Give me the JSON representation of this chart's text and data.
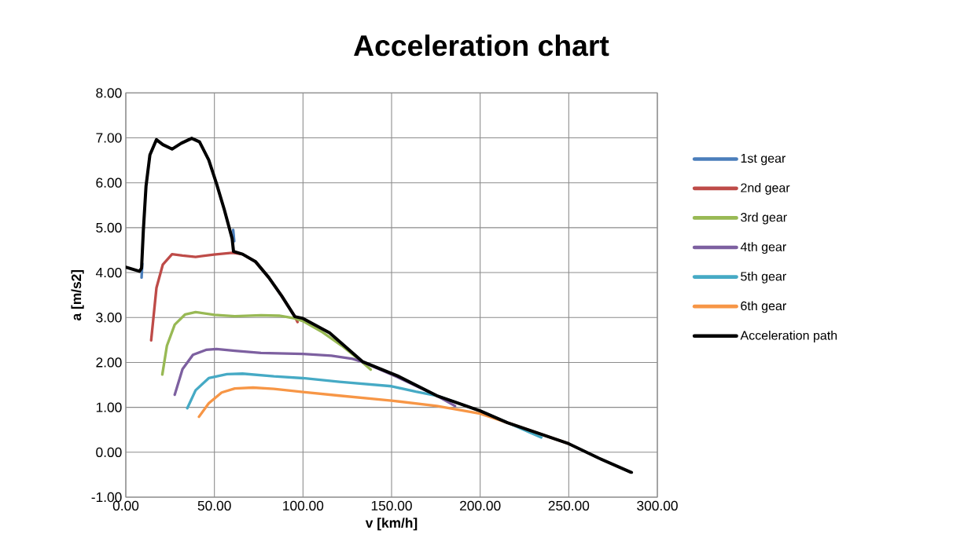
{
  "chart_data": {
    "type": "line",
    "title": "Acceleration chart",
    "xlabel": "v [km/h]",
    "ylabel": "a [m/s2]",
    "xlim": [
      0,
      300
    ],
    "ylim": [
      -1,
      8
    ],
    "xticks": [
      {
        "value": 0,
        "label": "0.00"
      },
      {
        "value": 50,
        "label": "50.00"
      },
      {
        "value": 100,
        "label": "100.00"
      },
      {
        "value": 150,
        "label": "150.00"
      },
      {
        "value": 200,
        "label": "200.00"
      },
      {
        "value": 250,
        "label": "250.00"
      },
      {
        "value": 300,
        "label": "300.00"
      }
    ],
    "yticks": [
      {
        "value": -1,
        "label": "-1.00"
      },
      {
        "value": 0,
        "label": "0.00"
      },
      {
        "value": 1,
        "label": "1.00"
      },
      {
        "value": 2,
        "label": "2.00"
      },
      {
        "value": 3,
        "label": "3.00"
      },
      {
        "value": 4,
        "label": "4.00"
      },
      {
        "value": 5,
        "label": "5.00"
      },
      {
        "value": 6,
        "label": "6.00"
      },
      {
        "value": 7,
        "label": "7.00"
      },
      {
        "value": 8,
        "label": "8.00"
      }
    ],
    "grid": true,
    "legend": "right",
    "marker": "none",
    "line_style": "solid",
    "series": [
      {
        "name": "1st gear",
        "color": "#4a7ebb",
        "x": [
          8.9,
          9.3,
          9.9,
          11.4,
          13.6,
          17.3,
          20.9,
          26.1,
          31.3,
          37.2,
          41.6,
          46.8,
          51.2,
          55.6,
          60.0,
          60.6,
          61.2
        ],
        "values": [
          3.89,
          4.2,
          null,
          null,
          null,
          null,
          null,
          null,
          null,
          null,
          null,
          null,
          null,
          null,
          null,
          4.95,
          4.7
        ]
      },
      {
        "name": "2nd gear",
        "color": "#be4b48",
        "x": [
          14.3,
          17.3,
          20.9,
          26.1,
          32.0,
          39.4,
          49.7,
          60.0,
          65.9,
          73.3,
          80.7,
          88.0,
          95.4,
          96.9
        ],
        "values": [
          2.49,
          3.66,
          4.18,
          4.41,
          4.38,
          4.35,
          4.4,
          4.44,
          4.41,
          4.24,
          3.89,
          3.48,
          3.02,
          2.9
        ]
      },
      {
        "name": "3rd gear",
        "color": "#98b954",
        "x": [
          20.6,
          23.2,
          27.6,
          33.5,
          39.4,
          50.0,
          61.5,
          76.3,
          86.6,
          95.4,
          100.0,
          110.3,
          122.0,
          133.0,
          138.2
        ],
        "values": [
          1.73,
          2.37,
          2.84,
          3.07,
          3.12,
          3.06,
          3.03,
          3.05,
          3.04,
          2.98,
          2.92,
          2.69,
          2.37,
          2.02,
          1.84
        ]
      },
      {
        "name": "4th gear",
        "color": "#7d60a0",
        "x": [
          27.6,
          32.0,
          37.9,
          45.3,
          51.2,
          61.5,
          76.3,
          100.0,
          116.0,
          128.0,
          133.0,
          153.4,
          175.5,
          185.8
        ],
        "values": [
          1.28,
          1.85,
          2.17,
          2.28,
          2.3,
          2.26,
          2.21,
          2.19,
          2.15,
          2.08,
          2.02,
          1.67,
          1.26,
          1.03
        ]
      },
      {
        "name": "5th gear",
        "color": "#46aac5",
        "x": [
          34.7,
          39.4,
          46.8,
          57.1,
          65.9,
          83.6,
          100.0,
          120.5,
          150.0,
          163.7,
          175.5,
          200.0,
          215.3,
          234.5
        ],
        "values": [
          0.98,
          1.38,
          1.65,
          1.74,
          1.75,
          1.69,
          1.65,
          1.57,
          1.47,
          1.35,
          1.26,
          0.92,
          0.66,
          0.33
        ]
      },
      {
        "name": "6th gear",
        "color": "#f79646",
        "x": [
          41.3,
          46.8,
          54.1,
          61.5,
          71.8,
          83.6,
          100.0,
          120.5,
          150.0,
          175.5,
          200.0,
          215.3,
          250.0
        ],
        "values": [
          0.79,
          1.09,
          1.33,
          1.42,
          1.44,
          1.41,
          1.34,
          1.26,
          1.15,
          1.03,
          0.86,
          0.66,
          0.19
        ]
      },
      {
        "name": "Acceleration path",
        "color": "#000000",
        "x": [
          0,
          7.7,
          8.9,
          9.9,
          11.4,
          13.6,
          17.3,
          20.9,
          26.1,
          31.3,
          37.2,
          41.6,
          46.8,
          51.2,
          55.6,
          60.0,
          60.8,
          65.9,
          73.3,
          80.7,
          88.0,
          95.4,
          100.0,
          115.0,
          133.5,
          153.4,
          175.5,
          200.0,
          215.3,
          250.0,
          266.9,
          285.4
        ],
        "values": [
          4.12,
          4.03,
          4.1,
          4.94,
          5.92,
          6.62,
          6.96,
          6.85,
          6.75,
          6.88,
          6.99,
          6.91,
          6.51,
          5.98,
          5.4,
          4.76,
          4.47,
          4.41,
          4.24,
          3.89,
          3.48,
          3.02,
          2.98,
          2.66,
          2.02,
          1.7,
          1.26,
          0.92,
          0.66,
          0.19,
          -0.13,
          -0.45
        ]
      }
    ]
  }
}
